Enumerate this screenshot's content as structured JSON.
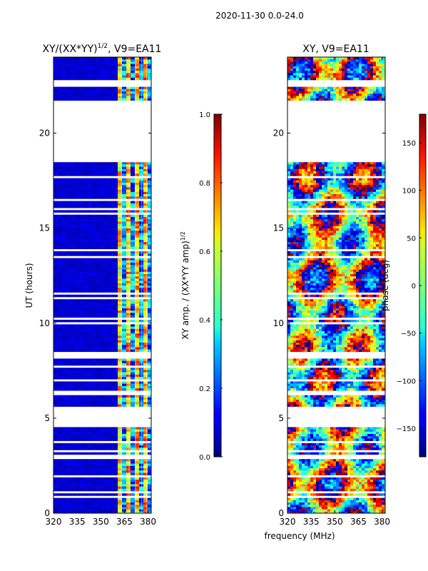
{
  "figure_title": "2020-11-30 0.0-24.0",
  "chart_data": [
    {
      "type": "heatmap",
      "title": "XY/(XX*YY)^{1/2}, V9=EA11",
      "title_main": "XY/(XX*YY)",
      "title_exp": "1/2",
      "title_rest": ", V9=EA11",
      "xlabel": "",
      "ylabel": "UT (hours)",
      "xlim": [
        320,
        382
      ],
      "ylim": [
        0,
        24
      ],
      "xticks": [
        320,
        335,
        350,
        365,
        380
      ],
      "yticks": [
        0,
        5,
        10,
        15,
        20
      ],
      "quantity": "normalized XY amplitude",
      "freq_band_active_MHz": [
        360,
        382
      ],
      "bands_UT_hours": [
        {
          "from": 0.0,
          "to": 5.6,
          "state": "data"
        },
        {
          "from": 5.6,
          "to": 21.8,
          "state": "partial"
        },
        {
          "from": 21.8,
          "to": 24.0,
          "state": "data"
        }
      ],
      "gap_UT_hours": [
        [
          4.6,
          5.7
        ],
        [
          18.5,
          21.8
        ]
      ],
      "colorbar": {
        "label": "XY amp. / (XX*YY amp)^{1/2}",
        "label_main": "XY amp. / (XX*YY amp)",
        "label_exp": "1/2",
        "range": [
          0.0,
          1.0
        ],
        "ticks": [
          "0.0",
          "0.2",
          "0.4",
          "0.6",
          "0.8",
          "1.0"
        ]
      }
    },
    {
      "type": "heatmap",
      "title": "XY, V9=EA11",
      "xlabel": "frequency (MHz)",
      "ylabel": "",
      "xlim": [
        320,
        382
      ],
      "ylim": [
        0,
        24
      ],
      "xticks": [
        320,
        335,
        350,
        365,
        380
      ],
      "yticks": [
        0,
        5,
        10,
        15,
        20
      ],
      "quantity": "XY phase",
      "gap_UT_hours": [
        [
          4.6,
          5.7
        ],
        [
          18.5,
          21.8
        ]
      ],
      "colorbar": {
        "label": "phase (deg)",
        "range": [
          -180,
          180
        ],
        "ticks": [
          "−150",
          "−100",
          "−50",
          "0",
          "50",
          "100",
          "150"
        ]
      }
    }
  ]
}
